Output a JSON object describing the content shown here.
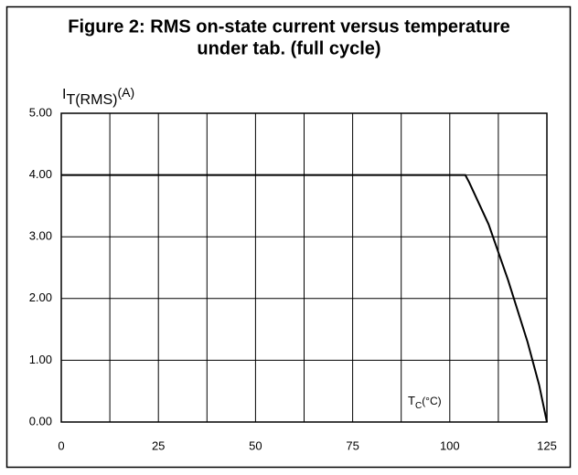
{
  "chart_data": {
    "type": "line",
    "title": "Figure 2: RMS on-state current versus temperature",
    "subtitle": "under tab. (full cycle)",
    "y_label": {
      "main": "I",
      "sub": "T(RMS)",
      "unit": "(A)"
    },
    "x_label": {
      "main": "T",
      "sub": "C",
      "unit": "(°C)"
    },
    "x": [
      0,
      104,
      105,
      110,
      115,
      120,
      123,
      125
    ],
    "series": [
      {
        "name": "IT(RMS)",
        "color": "#000000",
        "values": [
          4.0,
          4.0,
          3.88,
          3.2,
          2.3,
          1.3,
          0.6,
          0
        ]
      }
    ],
    "xlim": [
      0,
      125
    ],
    "xticks": [
      0,
      25,
      50,
      75,
      100,
      125
    ],
    "x_grid_lines": [
      12.5,
      25,
      37.5,
      50,
      62.5,
      75,
      87.5,
      100,
      112.5
    ],
    "ylim": [
      0,
      5
    ],
    "yticks": [
      {
        "value": 0,
        "label": "0.00"
      },
      {
        "value": 1,
        "label": "1.00"
      },
      {
        "value": 2,
        "label": "2.00"
      },
      {
        "value": 3,
        "label": "3.00"
      },
      {
        "value": 4,
        "label": "4.00"
      },
      {
        "value": 5,
        "label": "5.00"
      }
    ],
    "grid": true
  }
}
